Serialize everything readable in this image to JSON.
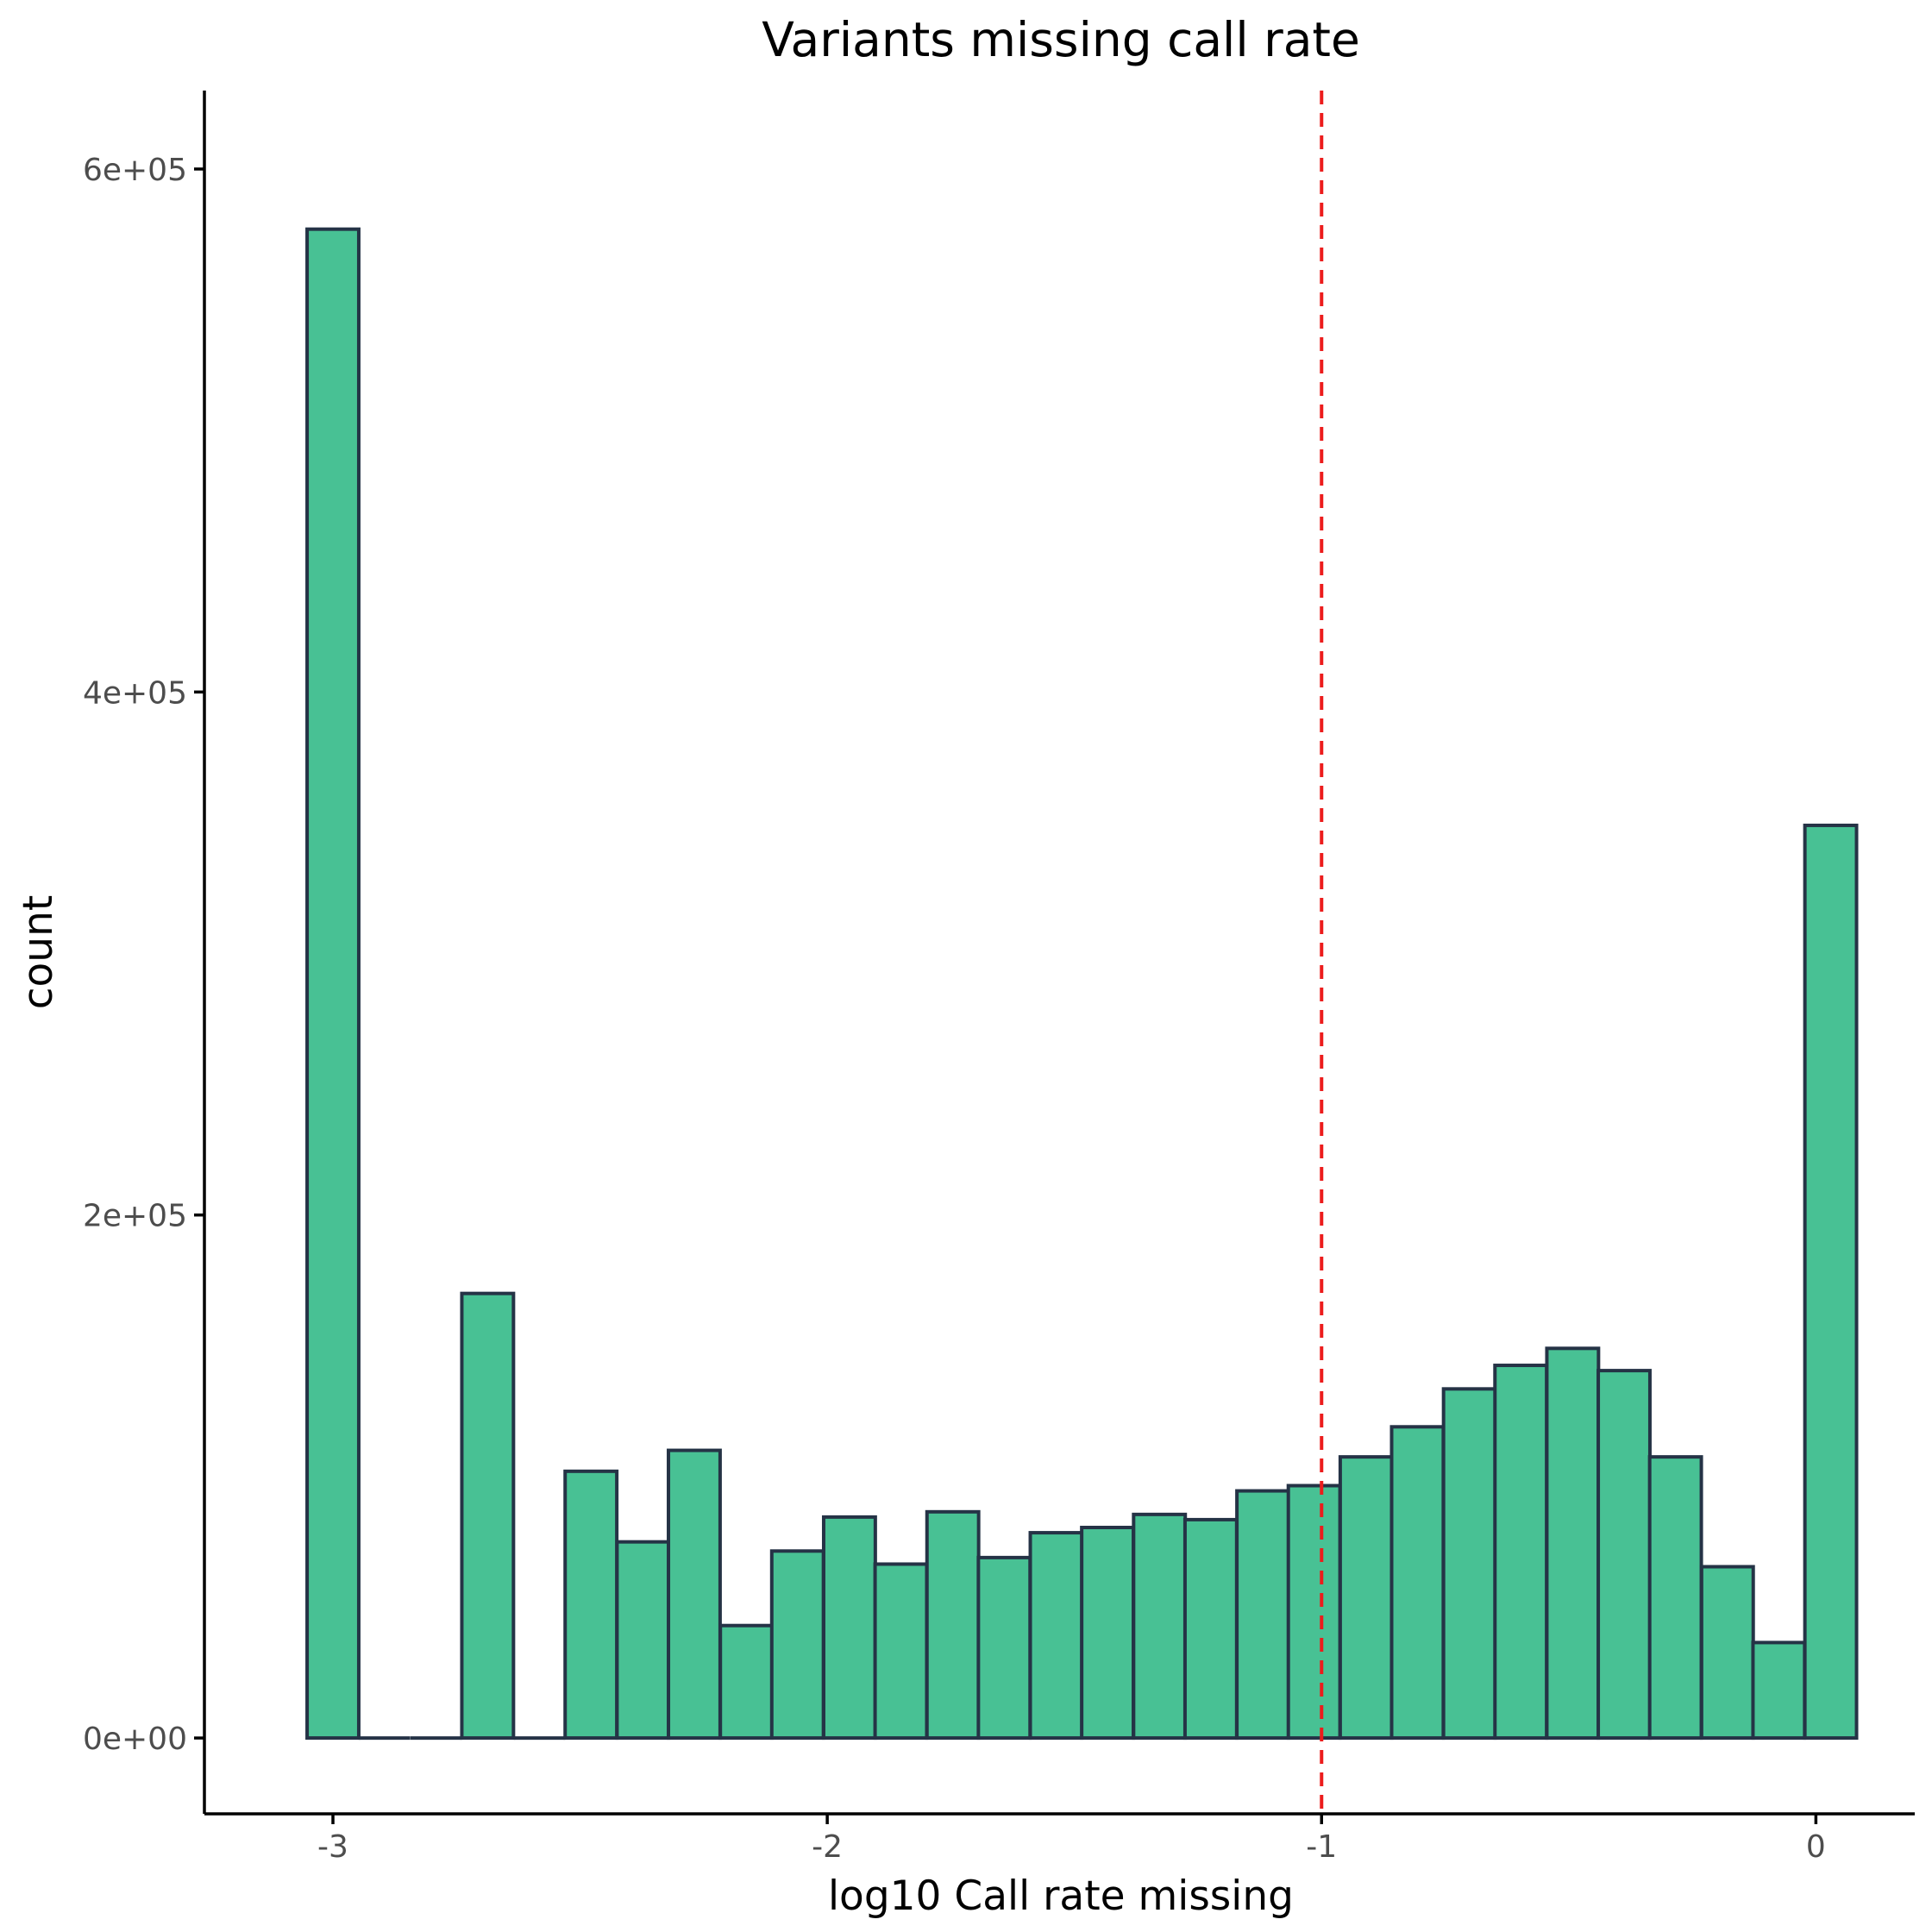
{
  "chart_data": {
    "type": "bar",
    "title": "Variants missing call rate",
    "xlabel": "log10 Call rate missing",
    "ylabel": "count",
    "xlim": [
      -3.26,
      0.2
    ],
    "ylim": [
      -29000,
      630000
    ],
    "bin_width": 0.1045,
    "x": [
      -3.0,
      -2.896,
      -2.791,
      -2.687,
      -2.582,
      -2.478,
      -2.373,
      -2.269,
      -2.164,
      -2.06,
      -1.955,
      -1.851,
      -1.746,
      -1.642,
      -1.537,
      -1.433,
      -1.328,
      -1.224,
      -1.119,
      -1.015,
      -0.91,
      -0.806,
      -0.701,
      -0.597,
      -0.492,
      -0.388,
      -0.284,
      -0.179,
      -0.075,
      0.03
    ],
    "values": [
      577000,
      0,
      0,
      170000,
      0,
      102000,
      75000,
      110000,
      43000,
      71500,
      84500,
      66500,
      86500,
      69000,
      78500,
      80500,
      85500,
      83500,
      94500,
      96500,
      107500,
      119000,
      133500,
      142500,
      149000,
      140500,
      107500,
      65500,
      36500,
      349000
    ],
    "xticks": [
      -3,
      -2,
      -1,
      0
    ],
    "xtick_labels": [
      "-3",
      "-2",
      "-1",
      "0"
    ],
    "yticks": [
      0,
      200000,
      400000,
      600000
    ],
    "ytick_labels": [
      "0e+00",
      "2e+05",
      "4e+05",
      "6e+05"
    ],
    "vline": {
      "x": -1,
      "style": "dashed"
    },
    "colors": {
      "bar_fill": "#48c194",
      "bar_stroke": "#253346",
      "vline": "#ec1c1c",
      "axis": "#000000"
    },
    "grid": false
  }
}
